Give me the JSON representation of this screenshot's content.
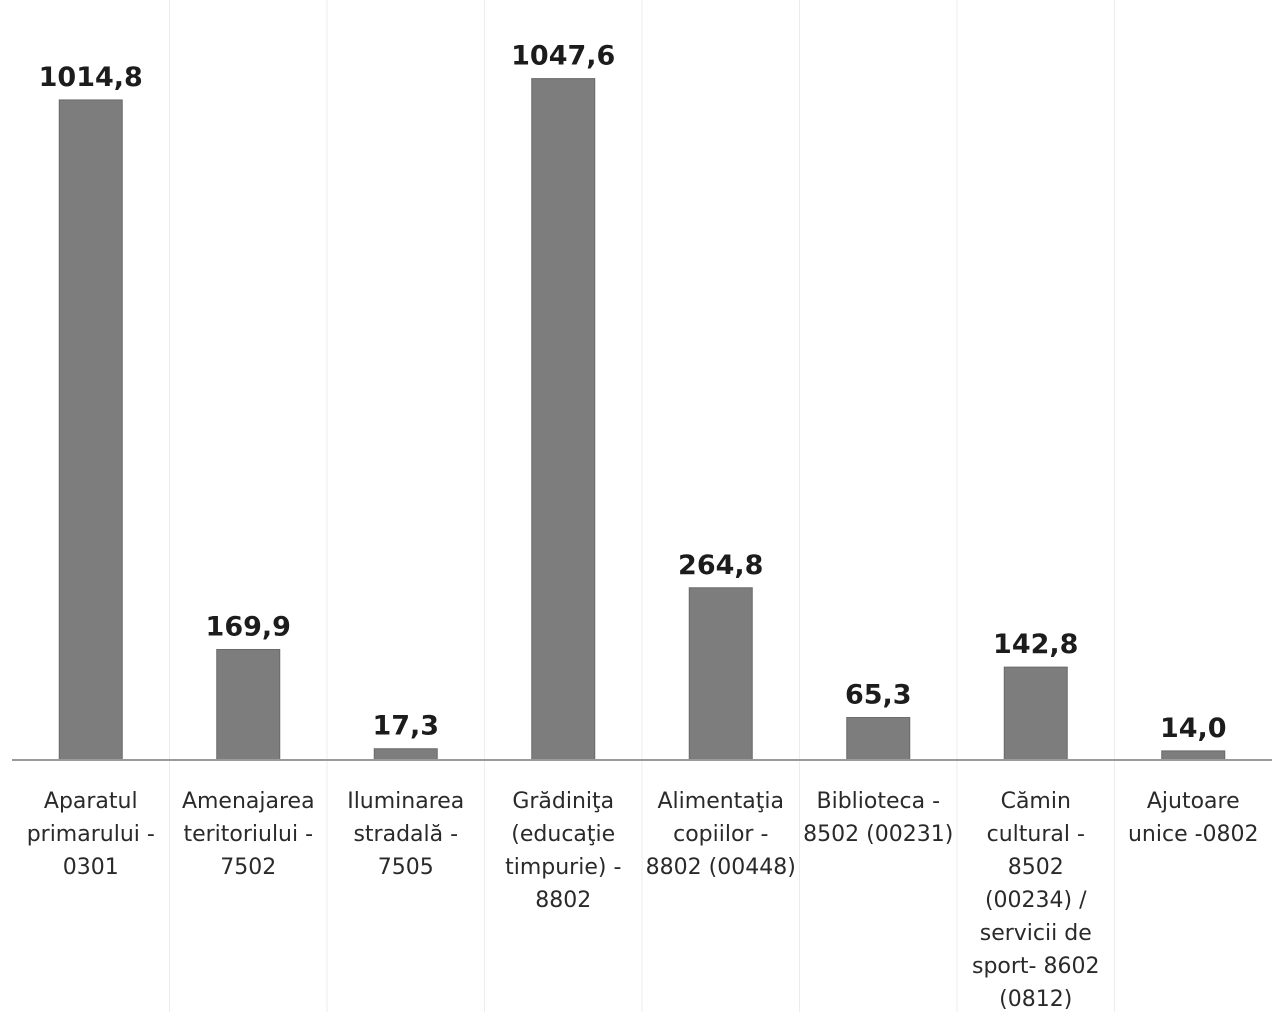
{
  "chart_data": {
    "type": "bar",
    "categories": [
      [
        "Aparatul",
        "primarului -",
        "0301"
      ],
      [
        "Amenajarea",
        "teritoriului -",
        "7502"
      ],
      [
        "Iluminarea",
        "stradală -",
        "7505"
      ],
      [
        "Grădiniţa",
        "(educaţie",
        "timpurie) -",
        "8802"
      ],
      [
        "Alimentaţia",
        "copiilor -",
        "8802 (00448)"
      ],
      [
        "Biblioteca -",
        "8502 (00231)"
      ],
      [
        "Cămin",
        "cultural -",
        "8502",
        "(00234) /",
        "servicii de",
        "sport- 8602",
        "(0812)"
      ],
      [
        "Ajutoare",
        "unice -0802"
      ]
    ],
    "values": [
      1014.8,
      169.9,
      17.3,
      1047.6,
      264.8,
      65.3,
      142.8,
      14.0
    ],
    "data_labels": [
      "1014,8",
      "169,9",
      "17,3",
      "1047,6",
      "264,8",
      "65,3",
      "142,8",
      "14,0"
    ],
    "title": "",
    "xlabel": "",
    "ylabel": "",
    "ylim": [
      0,
      1150
    ],
    "grid": "vertical category separators",
    "legend": "none",
    "colors": {
      "bar": "#7d7d7d",
      "bar_edge": "#6a6a6a",
      "axis": "#9a9a9a",
      "text": "#1c1c1c"
    }
  }
}
